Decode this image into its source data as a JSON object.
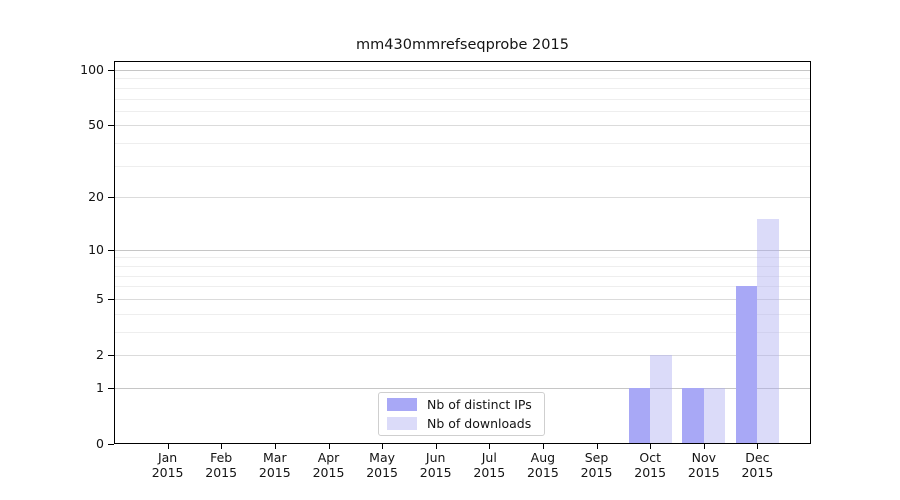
{
  "chart_data": {
    "type": "bar",
    "title": "mm430mmrefseqprobe 2015",
    "categories": [
      "Jan",
      "Feb",
      "Mar",
      "Apr",
      "May",
      "Jun",
      "Jul",
      "Aug",
      "Sep",
      "Oct",
      "Nov",
      "Dec"
    ],
    "category_year": "2015",
    "series": [
      {
        "name": "Nb of distinct IPs",
        "color": "#a8a8f6",
        "values": [
          0,
          0,
          0,
          0,
          0,
          0,
          0,
          0,
          0,
          1,
          1,
          6
        ]
      },
      {
        "name": "Nb of downloads",
        "color": "rgba(171,171,242,0.43)",
        "values": [
          0,
          0,
          0,
          0,
          0,
          0,
          0,
          0,
          0,
          2,
          1,
          15
        ]
      }
    ],
    "yscale": "log1p",
    "ylim": [
      0,
      100
    ],
    "y_ticks": [
      0,
      1,
      2,
      5,
      10,
      20,
      50,
      100
    ],
    "y_minor_gridlines": [
      3,
      4,
      6,
      7,
      8,
      9,
      30,
      40,
      60,
      70,
      80,
      90
    ],
    "grid": "horizontal",
    "legend_position": "lower-center"
  },
  "colors": {
    "background": "#ffffff",
    "axis": "#000000",
    "text": "#141414",
    "grid_decade": "#c6c6c6",
    "grid_major": "#dbdbdb",
    "grid_minor": "#eeeeee",
    "legend_border": "#cfcfcf"
  }
}
